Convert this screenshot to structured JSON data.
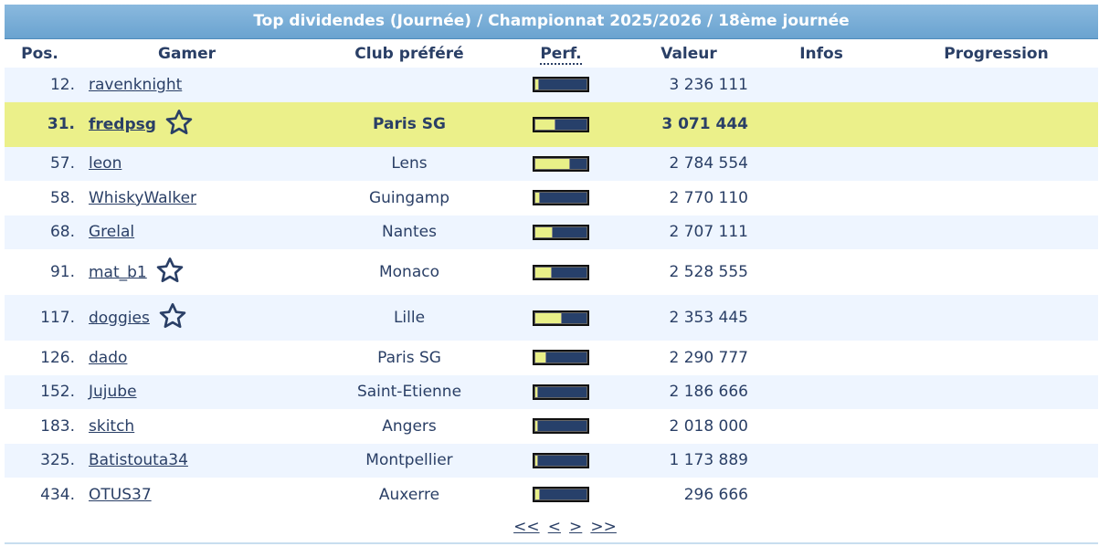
{
  "title": "Top dividendes (Journée) / Championnat 2025/2026 / 18ème journée",
  "headers": {
    "pos": "Pos.",
    "gamer": "Gamer",
    "club": "Club préféré",
    "perf": "Perf.",
    "valeur": "Valeur",
    "infos": "Infos",
    "progression": "Progression"
  },
  "rows": [
    {
      "pos": "12.",
      "gamer": "ravenknight",
      "club": "",
      "perf": 0.05,
      "valeur": "3 236 111",
      "star": false
    },
    {
      "pos": "31.",
      "gamer": "fredpsg",
      "club": "Paris SG",
      "perf": 0.38,
      "valeur": "3 071 444",
      "star": true,
      "highlight": true
    },
    {
      "pos": "57.",
      "gamer": "leon",
      "club": "Lens",
      "perf": 0.66,
      "valeur": "2 784 554",
      "star": false
    },
    {
      "pos": "58.",
      "gamer": "WhiskyWalker",
      "club": "Guingamp",
      "perf": 0.08,
      "valeur": "2 770 110",
      "star": false
    },
    {
      "pos": "68.",
      "gamer": "Grelal",
      "club": "Nantes",
      "perf": 0.33,
      "valeur": "2 707 111",
      "star": false
    },
    {
      "pos": "91.",
      "gamer": "mat_b1",
      "club": "Monaco",
      "perf": 0.3,
      "valeur": "2 528 555",
      "star": true
    },
    {
      "pos": "117.",
      "gamer": "doggies",
      "club": "Lille",
      "perf": 0.5,
      "valeur": "2 353 445",
      "star": true
    },
    {
      "pos": "126.",
      "gamer": "dado",
      "club": "Paris SG",
      "perf": 0.2,
      "valeur": "2 290 777",
      "star": false
    },
    {
      "pos": "152.",
      "gamer": "Jujube",
      "club": "Saint-Etienne",
      "perf": 0.03,
      "valeur": "2 186 666",
      "star": false
    },
    {
      "pos": "183.",
      "gamer": "skitch",
      "club": "Angers",
      "perf": 0.03,
      "valeur": "2 018 000",
      "star": false
    },
    {
      "pos": "325.",
      "gamer": "Batistouta34",
      "club": "Montpellier",
      "perf": 0.03,
      "valeur": "1 173 889",
      "star": false
    },
    {
      "pos": "434.",
      "gamer": "OTUS37",
      "club": "Auxerre",
      "perf": 0.08,
      "valeur": "296 666",
      "star": false
    }
  ],
  "pager": {
    "first": "<<",
    "prev": "<",
    "next": ">",
    "last": ">>"
  }
}
